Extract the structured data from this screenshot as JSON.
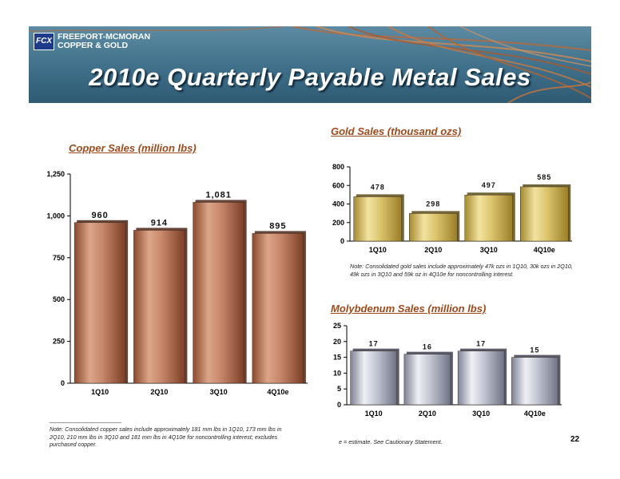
{
  "header": {
    "logo_line1": "FREEPORT-MCMORAN",
    "logo_line2": "COPPER & GOLD",
    "title": "2010e Quarterly Payable Metal Sales"
  },
  "colors": {
    "banner": "#3f6f89",
    "copper": "#b87457",
    "gold": "#d9c36d",
    "moly": "#b6bac8",
    "chart_title": "#9c4a1c"
  },
  "chart_data": [
    {
      "type": "bar",
      "title": "Copper Sales (million lbs)",
      "categories": [
        "1Q10",
        "2Q10",
        "3Q10",
        "4Q10e"
      ],
      "values": [
        960,
        914,
        1081,
        895
      ],
      "value_labels": [
        "960",
        "914",
        "1,081",
        "895"
      ],
      "ylim": [
        0,
        1250
      ],
      "yticks": [
        0,
        250,
        500,
        750,
        1000,
        1250
      ],
      "ytick_labels": [
        "0",
        "250",
        "500",
        "750",
        "1,000",
        "1,250"
      ],
      "grid": false
    },
    {
      "type": "bar",
      "title": "Gold Sales (thousand ozs)",
      "categories": [
        "1Q10",
        "2Q10",
        "3Q10",
        "4Q10e"
      ],
      "values": [
        478,
        298,
        497,
        585
      ],
      "value_labels": [
        "478",
        "298",
        "497",
        "585"
      ],
      "ylim": [
        0,
        800
      ],
      "yticks": [
        0,
        200,
        400,
        600,
        800
      ],
      "ytick_labels": [
        "0",
        "200",
        "400",
        "600",
        "800"
      ],
      "grid": false
    },
    {
      "type": "bar",
      "title": "Molybdenum Sales (million lbs)",
      "categories": [
        "1Q10",
        "2Q10",
        "3Q10",
        "4Q10e"
      ],
      "values": [
        17,
        16,
        17,
        15
      ],
      "value_labels": [
        "17",
        "16",
        "17",
        "15"
      ],
      "ylim": [
        0,
        25
      ],
      "yticks": [
        0,
        5,
        10,
        15,
        20,
        25
      ],
      "ytick_labels": [
        "0",
        "5",
        "10",
        "15",
        "20",
        "25"
      ],
      "grid": false
    }
  ],
  "notes": {
    "copper": "Note:  Consolidated copper sales include approximately 181 mm lbs in 1Q10, 173 mm lbs in 2Q10, 210 mm lbs in 3Q10 and 181 mm lbs in 4Q10e for noncontrolling interest; excludes purchased copper.",
    "gold": "Note:  Consolidated gold sales include approximately 47k ozs in 1Q10, 30k ozs in 2Q10, 49k ozs in 3Q10 and 59k oz in 4Q10e for noncontrolling interest.",
    "estimate": "e = estimate. See Cautionary Statement."
  },
  "page_number": "22"
}
